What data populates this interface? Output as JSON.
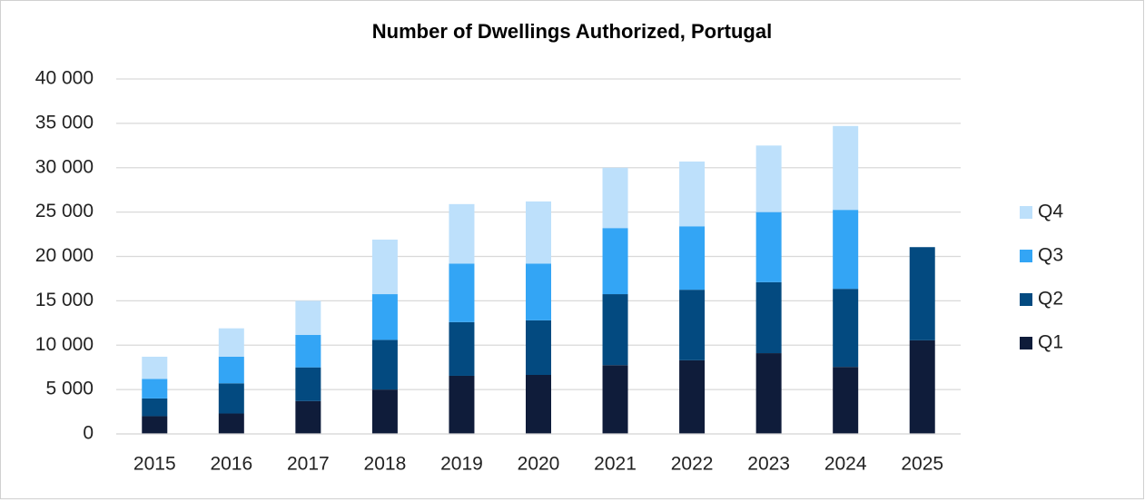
{
  "chart_data": {
    "type": "stacked_bar",
    "title": "Number of Dwellings Authorized, Portugal",
    "categories": [
      "2015",
      "2016",
      "2017",
      "2018",
      "2019",
      "2020",
      "2021",
      "2022",
      "2023",
      "2024",
      "2025"
    ],
    "series": [
      {
        "name": "Q1",
        "color": "#0f1c3a",
        "values": [
          2000,
          2300,
          3700,
          5000,
          6550,
          6650,
          7750,
          8300,
          9100,
          7550,
          10550
        ]
      },
      {
        "name": "Q2",
        "color": "#034a80",
        "values": [
          2000,
          3400,
          3800,
          5600,
          6050,
          6150,
          8000,
          7950,
          8000,
          8800,
          10500
        ]
      },
      {
        "name": "Q3",
        "color": "#33a5f5",
        "values": [
          2200,
          3000,
          3650,
          5150,
          6600,
          6400,
          7450,
          7150,
          7900,
          8900,
          null
        ]
      },
      {
        "name": "Q4",
        "color": "#bde0fb",
        "values": [
          2500,
          3200,
          3850,
          6150,
          6700,
          7000,
          6800,
          7300,
          7500,
          9450,
          null
        ]
      }
    ],
    "ylim": [
      0,
      40000
    ],
    "yticks": [
      0,
      {
        "value": 5000,
        "label": "5 000"
      },
      {
        "value": 10000,
        "label": "10 000"
      },
      {
        "value": 15000,
        "label": "15 000"
      },
      {
        "value": 20000,
        "label": "20 000"
      },
      {
        "value": 25000,
        "label": "25 000"
      },
      {
        "value": 30000,
        "label": "30 000"
      },
      {
        "value": 35000,
        "label": "35 000"
      },
      {
        "value": 40000,
        "label": "40 000"
      }
    ],
    "grid": true
  }
}
